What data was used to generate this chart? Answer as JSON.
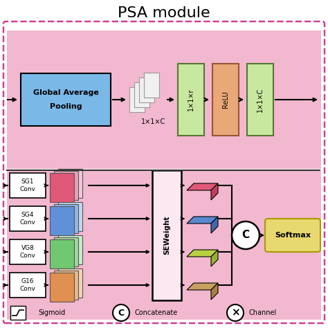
{
  "title": "PSA module",
  "bg_color": "#ffffff",
  "pink_bg": "#f2b8cf",
  "global_avg_pool_color": "#7ab8e8",
  "green_box_color": "#c8e8a0",
  "relu_box_color": "#e8a878",
  "softmax_color": "#e8d870",
  "seweight_fc": "#fce8f0",
  "dashed_ec": "#d8508888",
  "separator_color": "#333333",
  "branch_labels": [
    "SG1\nConv",
    "SG4\nConv",
    "VG8\nConv",
    "G16\nConv"
  ],
  "branch_colors_front": [
    "#e05878",
    "#6090d8",
    "#70c870",
    "#e09050"
  ],
  "branch_colors_mid": [
    "#e8a0b8",
    "#90b8e8",
    "#a0d8a0",
    "#e8b888"
  ],
  "branch_colors_back": [
    "#f0c8d8",
    "#c0d8f0",
    "#c8ecc8",
    "#f0d4b8"
  ],
  "para_colors_front": [
    "#e05878",
    "#5888d0",
    "#b8d040",
    "#c8a060"
  ],
  "para_colors_side": [
    "#c04060",
    "#4068b0",
    "#98b030",
    "#a88040"
  ],
  "legend_sigmoid_text": "Sigmoid",
  "legend_concat_text": "Concatenate",
  "legend_channel_text": "Channel"
}
